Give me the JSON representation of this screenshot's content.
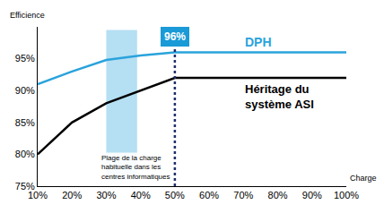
{
  "chart_data": {
    "type": "line",
    "y_label": "Efficience",
    "x_label": "Charge",
    "categories": [
      "10%",
      "20%",
      "30%",
      "40%",
      "50%",
      "60%",
      "70%",
      "80%",
      "90%",
      "100%"
    ],
    "series": [
      {
        "name": "DPH",
        "color": "#2aa3dc",
        "values": [
          91,
          93,
          94.8,
          95.5,
          96,
          96,
          96,
          96,
          96,
          96
        ]
      },
      {
        "name": "Héritage du\nsystème ASI",
        "color": "#000000",
        "values": [
          80,
          85,
          88,
          90,
          92,
          92,
          92,
          92,
          92,
          92
        ]
      }
    ],
    "ylim": [
      75,
      100
    ],
    "yticks": [
      {
        "value": 75,
        "label": "75%"
      },
      {
        "value": 80,
        "label": "80%"
      },
      {
        "value": 85,
        "label": "85%"
      },
      {
        "value": 90,
        "label": "90%"
      },
      {
        "value": 95,
        "label": "95%"
      }
    ],
    "grid": false,
    "legend": false,
    "annotations": [
      {
        "text": "96%",
        "x": "50%",
        "y": 98.5,
        "line_style": "dotted"
      },
      {
        "text": "Plage de la charge\nhabituelle dans les\ncentres informatiques",
        "x": [
          "30%",
          "40%"
        ],
        "y": 78
      }
    ]
  }
}
